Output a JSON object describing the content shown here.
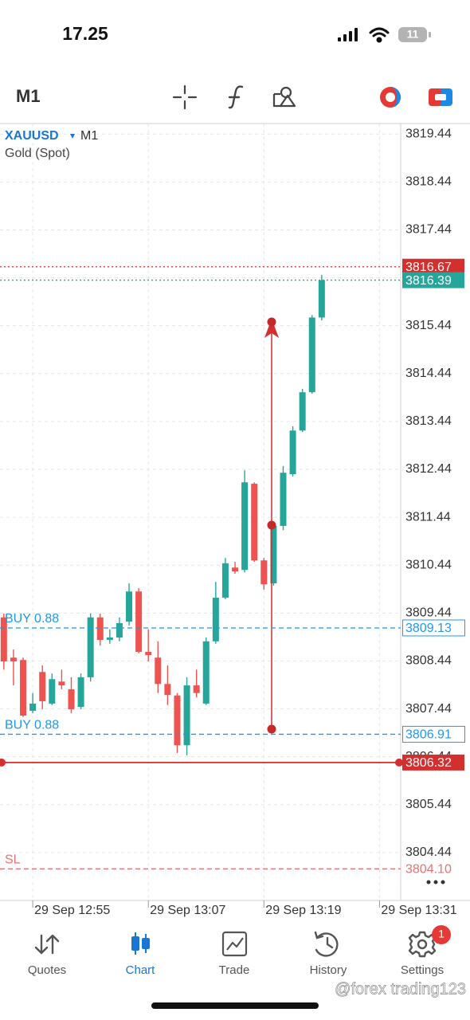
{
  "status_bar": {
    "time": "17.25",
    "battery": "11"
  },
  "toolbar": {
    "timeframe": "M1"
  },
  "chart_data": {
    "type": "candlestick",
    "symbol": "XAUUSD",
    "timeframe": "M1",
    "description": "Gold (Spot)",
    "up_color": "#26a69a",
    "down_color": "#ef5350",
    "grid": true,
    "xlim": [
      -0.4,
      41.2
    ],
    "xticks": [
      {
        "value": 3,
        "label": "29 Sep 12:55"
      },
      {
        "value": 15,
        "label": "29 Sep 13:07"
      },
      {
        "value": 27,
        "label": "29 Sep 13:19"
      },
      {
        "value": 39,
        "label": "29 Sep 13:31"
      }
    ],
    "ylim": [
      3803.44,
      3819.66
    ],
    "yticks": [
      3804.44,
      3805.44,
      3806.44,
      3807.44,
      3808.44,
      3809.44,
      3810.44,
      3811.44,
      3812.44,
      3813.44,
      3814.44,
      3815.44,
      3816.44,
      3817.44,
      3818.44,
      3819.44
    ],
    "x": [
      0,
      1,
      2,
      3,
      4,
      5,
      6,
      7,
      8,
      9,
      10,
      11,
      12,
      13,
      14,
      15,
      16,
      17,
      18,
      19,
      20,
      21,
      22,
      23,
      24,
      25,
      26,
      27,
      28,
      29,
      30,
      31,
      32,
      33
    ],
    "open": [
      3809.35,
      3808.51,
      3808.46,
      3807.4,
      3808.21,
      3807.55,
      3808.01,
      3807.85,
      3807.48,
      3808.1,
      3809.35,
      3808.88,
      3808.93,
      3809.26,
      3809.89,
      3808.63,
      3808.51,
      3807.96,
      3807.72,
      3806.68,
      3807.93,
      3807.55,
      3808.85,
      3809.76,
      3810.39,
      3810.34,
      3812.14,
      3810.54,
      3810.06,
      3811.26,
      3812.34,
      3813.25,
      3814.05,
      3815.61
    ],
    "high": [
      3809.43,
      3808.68,
      3808.51,
      3807.77,
      3808.35,
      3808.18,
      3808.26,
      3808.1,
      3808.18,
      3809.43,
      3809.43,
      3809.1,
      3809.35,
      3810.06,
      3809.96,
      3809.1,
      3808.85,
      3808.35,
      3807.77,
      3808.1,
      3808.26,
      3808.93,
      3810.09,
      3810.59,
      3810.51,
      3812.42,
      3812.17,
      3810.59,
      3811.34,
      3812.51,
      3813.34,
      3814.12,
      3815.66,
      3816.5
    ],
    "low": [
      3808.26,
      3807.93,
      3807.27,
      3807.35,
      3807.43,
      3807.52,
      3807.85,
      3807.35,
      3807.43,
      3808.01,
      3808.76,
      3808.8,
      3808.85,
      3809.18,
      3808.6,
      3808.43,
      3807.77,
      3807.52,
      3806.52,
      3806.47,
      3807.68,
      3807.52,
      3808.8,
      3809.73,
      3810.26,
      3810.29,
      3810.51,
      3809.93,
      3810.01,
      3811.17,
      3812.29,
      3813.22,
      3814.02,
      3815.55
    ],
    "close": [
      3808.43,
      3808.43,
      3807.3,
      3807.55,
      3807.6,
      3808.06,
      3807.93,
      3807.43,
      3808.1,
      3809.35,
      3808.88,
      3808.93,
      3809.23,
      3809.89,
      3808.63,
      3808.56,
      3807.96,
      3807.73,
      3806.68,
      3807.93,
      3807.77,
      3808.85,
      3809.76,
      3810.48,
      3810.31,
      3812.17,
      3810.54,
      3810.04,
      3811.26,
      3812.37,
      3813.25,
      3814.05,
      3815.61,
      3816.39
    ],
    "price_lines": [
      {
        "price": 3816.67,
        "color": "#d32f2f",
        "style": "dotted",
        "tag": "filled"
      },
      {
        "price": 3816.39,
        "color": "#26a69a",
        "style": "dotted",
        "tag": "filled"
      },
      {
        "price": 3809.13,
        "color": "#2196f3",
        "style": "dashed",
        "tag": "outlined",
        "text": "BUY 0.88"
      },
      {
        "price": 3806.91,
        "color": "#2196f3",
        "style": "dashed",
        "tag": "outlined",
        "text": "BUY 0.88"
      },
      {
        "price": 3806.32,
        "color": "#d32f2f",
        "style": "solid",
        "tag": "filled",
        "end_dots": true
      },
      {
        "price": {
          "value": 3804.1,
          "label": "3804.10"
        },
        "color": "#e57373",
        "style": "dashed",
        "tag": "plain",
        "text": "SL"
      }
    ]
  },
  "tab_bar": {
    "tabs": [
      {
        "label": "Quotes"
      },
      {
        "label": "Chart",
        "active": true
      },
      {
        "label": "Trade"
      },
      {
        "label": "History"
      },
      {
        "label": "Settings",
        "badge": "1"
      }
    ]
  },
  "watermark": "@forex trading123"
}
